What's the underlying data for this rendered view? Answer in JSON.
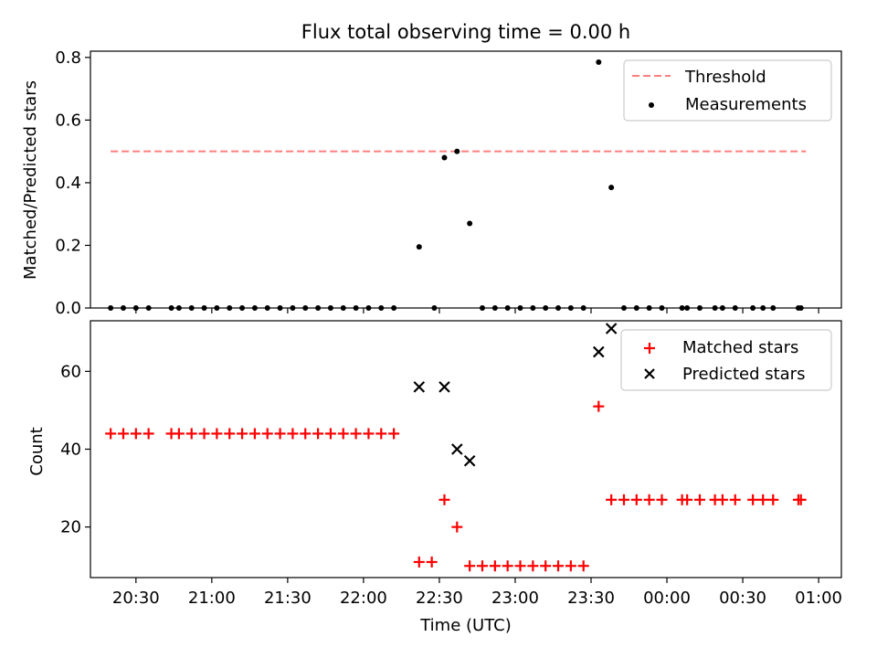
{
  "figure": {
    "title": "Flux total observing time = 0.00 h",
    "xlabel": "Time (UTC)"
  },
  "colors": {
    "threshold": "#ff7f7f",
    "measurements": "#000000",
    "matched": "#ff0000",
    "predicted": "#000000"
  },
  "chart_data": [
    {
      "type": "scatter",
      "ylabel": "Matched/Predicted stars",
      "ylim": [
        0,
        0.82
      ],
      "yticks": [
        0.0,
        0.2,
        0.4,
        0.6,
        0.8
      ],
      "ytick_labels": [
        "0.0",
        "0.2",
        "0.4",
        "0.6",
        "0.8"
      ],
      "x_domain": [
        "20:12",
        "01:09"
      ],
      "xticks": [
        "20:30",
        "21:00",
        "21:30",
        "22:00",
        "22:30",
        "23:00",
        "23:30",
        "00:00",
        "00:30",
        "01:00"
      ],
      "xtick_labels": [
        "",
        "",
        "",
        "",
        "",
        "",
        "",
        "",
        "",
        ""
      ],
      "legend": {
        "position": "upper right",
        "entries": [
          "Threshold",
          "Measurements"
        ]
      },
      "threshold": {
        "name": "Threshold",
        "x_start": "20:20",
        "x_end": "00:55",
        "y": 0.5
      },
      "series": [
        {
          "name": "Measurements",
          "points": [
            [
              "20:20",
              0.0
            ],
            [
              "20:25",
              0.0
            ],
            [
              "20:30",
              0.0
            ],
            [
              "20:35",
              0.0
            ],
            [
              "20:44",
              0.0
            ],
            [
              "20:47",
              0.0
            ],
            [
              "20:52",
              0.0
            ],
            [
              "20:57",
              0.0
            ],
            [
              "21:02",
              0.0
            ],
            [
              "21:07",
              0.0
            ],
            [
              "21:12",
              0.0
            ],
            [
              "21:17",
              0.0
            ],
            [
              "21:22",
              0.0
            ],
            [
              "21:27",
              0.0
            ],
            [
              "21:32",
              0.0
            ],
            [
              "21:37",
              0.0
            ],
            [
              "21:42",
              0.0
            ],
            [
              "21:47",
              0.0
            ],
            [
              "21:52",
              0.0
            ],
            [
              "21:57",
              0.0
            ],
            [
              "22:02",
              0.0
            ],
            [
              "22:07",
              0.0
            ],
            [
              "22:12",
              0.0
            ],
            [
              "22:22",
              0.195
            ],
            [
              "22:28",
              0.0
            ],
            [
              "22:32",
              0.48
            ],
            [
              "22:37",
              0.5
            ],
            [
              "22:42",
              0.27
            ],
            [
              "22:47",
              0.0
            ],
            [
              "22:52",
              0.0
            ],
            [
              "22:57",
              0.0
            ],
            [
              "23:02",
              0.0
            ],
            [
              "23:07",
              0.0
            ],
            [
              "23:12",
              0.0
            ],
            [
              "23:17",
              0.0
            ],
            [
              "23:22",
              0.0
            ],
            [
              "23:27",
              0.0
            ],
            [
              "23:33",
              0.785
            ],
            [
              "23:38",
              0.385
            ],
            [
              "23:43",
              0.0
            ],
            [
              "23:48",
              0.0
            ],
            [
              "23:53",
              0.0
            ],
            [
              "23:58",
              0.0
            ],
            [
              "00:06",
              0.0
            ],
            [
              "00:08",
              0.0
            ],
            [
              "00:13",
              0.0
            ],
            [
              "00:19",
              0.0
            ],
            [
              "00:22",
              0.0
            ],
            [
              "00:27",
              0.0
            ],
            [
              "00:34",
              0.0
            ],
            [
              "00:38",
              0.0
            ],
            [
              "00:42",
              0.0
            ],
            [
              "00:52",
              0.0
            ],
            [
              "00:53",
              0.0
            ]
          ]
        }
      ]
    },
    {
      "type": "scatter",
      "ylabel": "Count",
      "ylim": [
        7,
        73
      ],
      "yticks": [
        20,
        40,
        60
      ],
      "ytick_labels": [
        "20",
        "40",
        "60"
      ],
      "x_domain": [
        "20:12",
        "01:09"
      ],
      "xticks": [
        "20:30",
        "21:00",
        "21:30",
        "22:00",
        "22:30",
        "23:00",
        "23:30",
        "00:00",
        "00:30",
        "01:00"
      ],
      "xtick_labels": [
        "20:30",
        "21:00",
        "21:30",
        "22:00",
        "22:30",
        "23:00",
        "23:30",
        "00:00",
        "00:30",
        "01:00"
      ],
      "legend": {
        "position": "upper right",
        "entries": [
          "Matched stars",
          "Predicted stars"
        ]
      },
      "series": [
        {
          "name": "Matched stars",
          "marker": "+",
          "points": [
            [
              "20:20",
              44
            ],
            [
              "20:25",
              44
            ],
            [
              "20:30",
              44
            ],
            [
              "20:35",
              44
            ],
            [
              "20:44",
              44
            ],
            [
              "20:47",
              44
            ],
            [
              "20:52",
              44
            ],
            [
              "20:57",
              44
            ],
            [
              "21:02",
              44
            ],
            [
              "21:07",
              44
            ],
            [
              "21:12",
              44
            ],
            [
              "21:17",
              44
            ],
            [
              "21:22",
              44
            ],
            [
              "21:27",
              44
            ],
            [
              "21:32",
              44
            ],
            [
              "21:37",
              44
            ],
            [
              "21:42",
              44
            ],
            [
              "21:47",
              44
            ],
            [
              "21:52",
              44
            ],
            [
              "21:57",
              44
            ],
            [
              "22:02",
              44
            ],
            [
              "22:07",
              44
            ],
            [
              "22:12",
              44
            ],
            [
              "22:22",
              11
            ],
            [
              "22:27",
              11
            ],
            [
              "22:32",
              27
            ],
            [
              "22:37",
              20
            ],
            [
              "22:42",
              10
            ],
            [
              "22:47",
              10
            ],
            [
              "22:52",
              10
            ],
            [
              "22:57",
              10
            ],
            [
              "23:02",
              10
            ],
            [
              "23:07",
              10
            ],
            [
              "23:12",
              10
            ],
            [
              "23:17",
              10
            ],
            [
              "23:22",
              10
            ],
            [
              "23:27",
              10
            ],
            [
              "23:33",
              51
            ],
            [
              "23:38",
              27
            ],
            [
              "23:43",
              27
            ],
            [
              "23:48",
              27
            ],
            [
              "23:53",
              27
            ],
            [
              "23:58",
              27
            ],
            [
              "00:06",
              27
            ],
            [
              "00:08",
              27
            ],
            [
              "00:13",
              27
            ],
            [
              "00:19",
              27
            ],
            [
              "00:22",
              27
            ],
            [
              "00:27",
              27
            ],
            [
              "00:34",
              27
            ],
            [
              "00:38",
              27
            ],
            [
              "00:42",
              27
            ],
            [
              "00:52",
              27
            ],
            [
              "00:53",
              27
            ]
          ]
        },
        {
          "name": "Predicted stars",
          "marker": "x",
          "points": [
            [
              "22:22",
              56
            ],
            [
              "22:32",
              56
            ],
            [
              "22:37",
              40
            ],
            [
              "22:42",
              37
            ],
            [
              "23:33",
              65
            ],
            [
              "23:38",
              71
            ]
          ]
        }
      ]
    }
  ]
}
